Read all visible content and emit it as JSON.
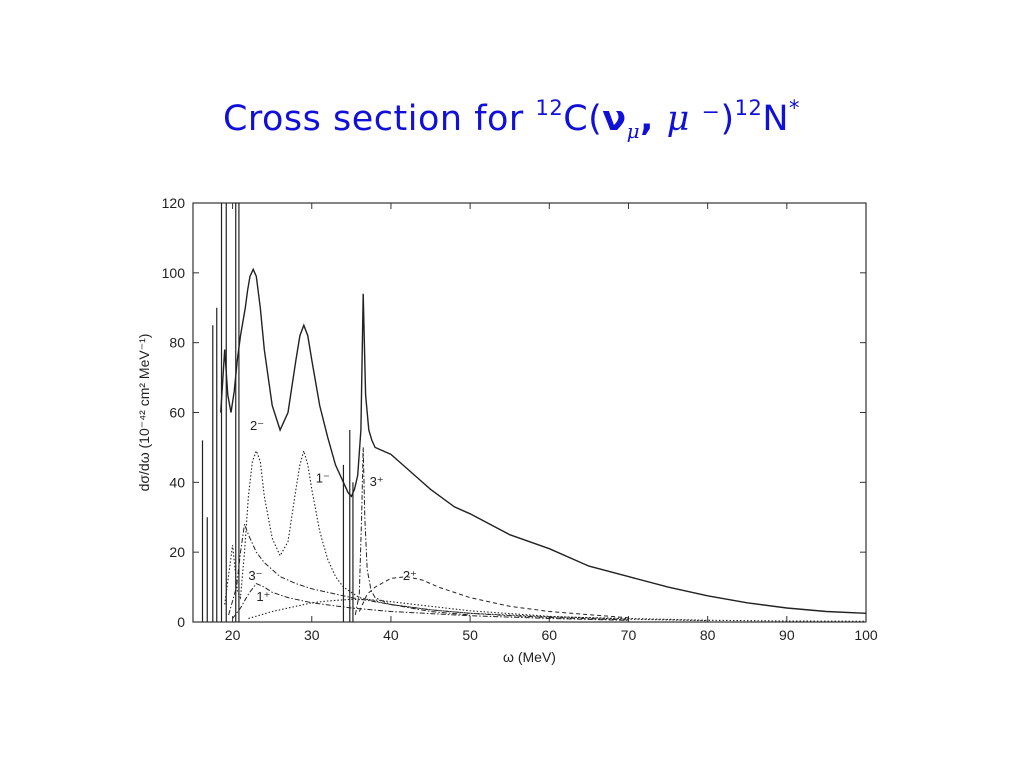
{
  "slide": {
    "title_prefix": "Cross section for ",
    "title_sup1": "12",
    "title_c": "C(",
    "title_nu": "ν",
    "title_nu_sub": "μ",
    "title_comma": ", ",
    "title_mu": "μ",
    "title_minus": " ⁻",
    "title_close": ")",
    "title_sup2": "12",
    "title_n": "N",
    "title_star": "*",
    "title_color": "#1010d8"
  },
  "chart_data": {
    "type": "line",
    "xlabel": "ω (MeV)",
    "ylabel": "dσ/dω (10⁻⁴² cm² MeV⁻¹)",
    "xlim": [
      15,
      100
    ],
    "ylim": [
      0,
      120
    ],
    "xticks": [
      20,
      30,
      40,
      50,
      60,
      70,
      80,
      90,
      100
    ],
    "yticks": [
      0,
      20,
      40,
      60,
      80,
      100,
      120
    ],
    "grid": false,
    "annotations": [
      {
        "text": "2⁻",
        "x": 22.2,
        "y": 55
      },
      {
        "text": "1⁻",
        "x": 30.5,
        "y": 40
      },
      {
        "text": "3⁺",
        "x": 37.3,
        "y": 39
      },
      {
        "text": "3⁻",
        "x": 22.0,
        "y": 12
      },
      {
        "text": "1⁺",
        "x": 23.0,
        "y": 6
      },
      {
        "text": "2⁺",
        "x": 41.5,
        "y": 12
      }
    ],
    "series": [
      {
        "style": "solid",
        "x": [
          18.5,
          19.0,
          19.4,
          19.8,
          20.2,
          20.6,
          21.0,
          21.3,
          21.6,
          21.9,
          22.2,
          22.6,
          23.0,
          23.5,
          24.0,
          25.0,
          26.0,
          27.0,
          28.0,
          28.5,
          29.0,
          29.5,
          30.0,
          31.0,
          32.0,
          33.0,
          34.0,
          34.6,
          35.0,
          35.4,
          35.8,
          36.2,
          36.5,
          36.8,
          37.2,
          37.6,
          38.0,
          39.0,
          40.0,
          41.0,
          43.0,
          45.0,
          48.0,
          50.0,
          55.0,
          60.0,
          65.0,
          70.0,
          75.0,
          80.0,
          85.0,
          90.0,
          95.0,
          100.0
        ],
        "y": [
          60,
          78,
          65,
          60,
          66,
          75,
          82,
          86,
          90,
          95,
          99,
          101,
          99,
          90,
          78,
          62,
          55,
          60,
          75,
          82,
          85,
          82,
          75,
          62,
          53,
          45,
          40,
          37,
          36,
          38,
          42,
          55,
          94,
          65,
          55,
          52,
          50,
          49,
          48,
          46,
          42,
          38,
          33,
          31,
          25,
          21,
          16,
          13,
          10,
          7.5,
          5.5,
          4,
          3,
          2.5
        ]
      },
      {
        "style": "dotted",
        "x": [
          19.0,
          20.0,
          20.6,
          21.0,
          21.5,
          22.0,
          22.5,
          23.0,
          23.5,
          24.0,
          25.0,
          26.0,
          27.0,
          28.0,
          28.5,
          29.0,
          29.5,
          30.0,
          31.0,
          32.0,
          33.0,
          34.0,
          36.0,
          40.0,
          45.0,
          50.0,
          60.0,
          70.0,
          80.0,
          90.0,
          100.0
        ],
        "y": [
          5,
          22,
          9,
          7,
          20,
          36,
          46,
          49,
          46,
          36,
          24,
          19,
          23,
          38,
          45,
          49,
          45,
          38,
          26,
          18,
          13,
          10,
          7,
          5,
          3.5,
          2.5,
          1.5,
          1,
          0.5,
          0.3,
          0.2
        ]
      },
      {
        "style": "dash-dot",
        "x": [
          19.5,
          20.5,
          21.0,
          21.5,
          22.0,
          23.0,
          24.0,
          26.0,
          28.0,
          30.0,
          35.0,
          40.0,
          45.0,
          50.0,
          55.0,
          60.0,
          70.0
        ],
        "y": [
          2,
          10,
          20,
          28,
          25,
          20,
          17,
          13,
          11,
          9.5,
          7,
          5,
          3.5,
          2.5,
          1.8,
          1.3,
          0.6
        ]
      },
      {
        "style": "dash-dot",
        "x": [
          20.0,
          21.0,
          22.0,
          23.0,
          24.0,
          25.0,
          27.0,
          30.0,
          35.0,
          40.0,
          50.0,
          60.0,
          70.0
        ],
        "y": [
          1,
          4,
          8,
          11,
          10,
          8.5,
          7,
          5.5,
          4,
          3,
          1.8,
          1,
          0.5
        ]
      },
      {
        "style": "dotted",
        "x": [
          22.0,
          25.0,
          28.0,
          30.0,
          32.0,
          35.0,
          38.0,
          40.0,
          45.0,
          50.0,
          60.0,
          70.0,
          80.0
        ],
        "y": [
          1,
          3,
          4.5,
          5.5,
          6,
          6.5,
          6.3,
          5.8,
          4.5,
          3.2,
          1.6,
          0.8,
          0.4
        ]
      },
      {
        "style": "dash-dot",
        "x": [
          35.5,
          36.0,
          36.3,
          36.5,
          36.7,
          37.0,
          37.5,
          38.0,
          40.0,
          45.0,
          50.0
        ],
        "y": [
          2,
          8,
          30,
          50,
          30,
          15,
          9,
          7,
          5,
          3,
          2
        ]
      },
      {
        "style": "dashed",
        "x": [
          36.0,
          37.0,
          38.0,
          40.0,
          42.0,
          44.0,
          46.0,
          50.0,
          55.0,
          60.0,
          70.0
        ],
        "y": [
          3,
          8,
          10,
          12.5,
          13,
          12,
          10,
          7,
          4.5,
          3,
          1.2
        ]
      }
    ],
    "spikes": [
      {
        "x": 16.2,
        "y": 52
      },
      {
        "x": 16.8,
        "y": 30
      },
      {
        "x": 17.5,
        "y": 85
      },
      {
        "x": 18.0,
        "y": 90
      },
      {
        "x": 18.6,
        "y": 120
      },
      {
        "x": 19.2,
        "y": 120
      },
      {
        "x": 20.4,
        "y": 120
      },
      {
        "x": 20.8,
        "y": 120
      },
      {
        "x": 34.0,
        "y": 45
      },
      {
        "x": 34.8,
        "y": 55
      },
      {
        "x": 35.2,
        "y": 40
      }
    ]
  }
}
